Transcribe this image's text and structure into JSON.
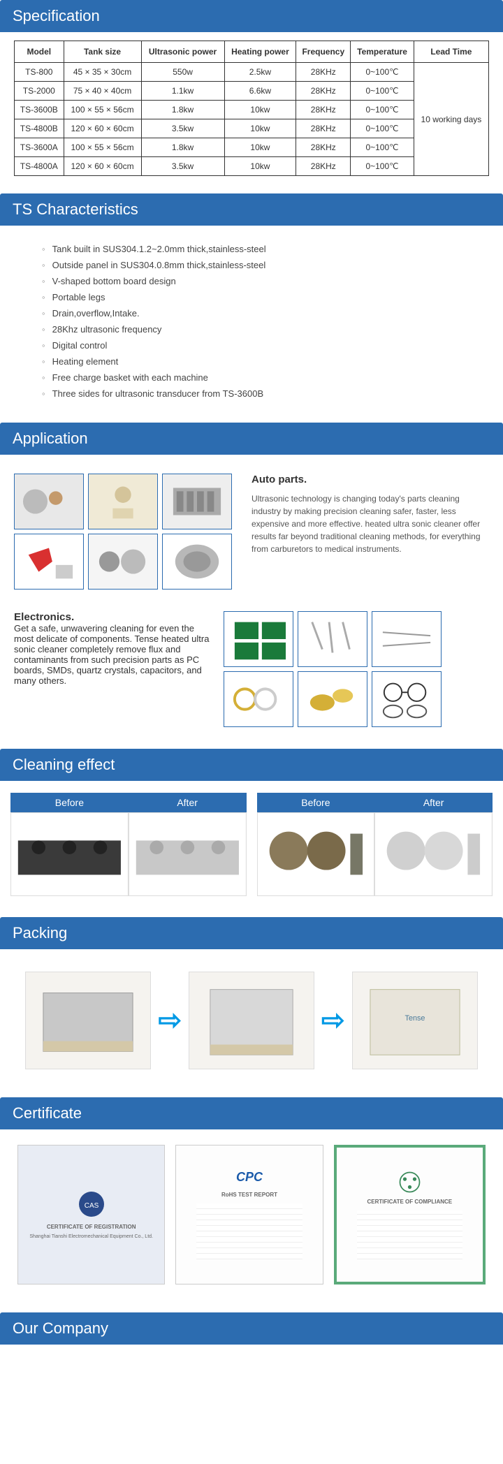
{
  "colors": {
    "header_bg": "#2c6cb0",
    "header_text": "#ffffff",
    "border": "#333333",
    "arrow": "#0099e5"
  },
  "sections": {
    "specification": "Specification",
    "characteristics": "TS Characteristics",
    "application": "Application",
    "cleaning": "Cleaning effect",
    "packing": "Packing",
    "certificate": "Certificate",
    "company": "Our Company"
  },
  "spec_table": {
    "headers": [
      "Model",
      "Tank size",
      "Ultrasonic power",
      "Heating power",
      "Frequency",
      "Temperature",
      "Lead Time"
    ],
    "rows": [
      [
        "TS-800",
        "45 × 35 × 30cm",
        "550w",
        "2.5kw",
        "28KHz",
        "0~100℃"
      ],
      [
        "TS-2000",
        "75 × 40 × 40cm",
        "1.1kw",
        "6.6kw",
        "28KHz",
        "0~100℃"
      ],
      [
        "TS-3600B",
        "100 × 55 × 56cm",
        "1.8kw",
        "10kw",
        "28KHz",
        "0~100℃"
      ],
      [
        "TS-4800B",
        "120 × 60 × 60cm",
        "3.5kw",
        "10kw",
        "28KHz",
        "0~100℃"
      ],
      [
        "TS-3600A",
        "100 × 55 × 56cm",
        "1.8kw",
        "10kw",
        "28KHz",
        "0~100℃"
      ],
      [
        "TS-4800A",
        "120 × 60 × 60cm",
        "3.5kw",
        "10kw",
        "28KHz",
        "0~100℃"
      ]
    ],
    "lead_time": "10 working days"
  },
  "characteristics": [
    "Tank built in SUS304.1.2~2.0mm thick,stainless-steel",
    "Outside panel in SUS304.0.8mm thick,stainless-steel",
    "V-shaped bottom board design",
    "Portable legs",
    "Drain,overflow,Intake.",
    "28Khz ultrasonic frequency",
    "Digital control",
    "Heating element",
    "Free charge basket with each machine",
    "Three sides for ultrasonic transducer from TS-3600B"
  ],
  "application": {
    "auto": {
      "title": "Auto parts.",
      "body": "Ultrasonic technology is changing today's parts cleaning industry by making precision cleaning safer, faster, less expensive and more effective. heated ultra sonic cleaner offer results far beyond traditional cleaning methods, for everything from carburetors to medical instruments."
    },
    "electronics": {
      "title": "Electronics.",
      "body": "Get a safe, unwavering cleaning for even the most delicate of components. Tense heated ultra sonic cleaner completely remove flux and contaminants from such precision parts as PC boards, SMDs, quartz crystals, capacitors, and many others."
    }
  },
  "cleaning": {
    "before": "Before",
    "after": "After"
  },
  "certificates": {
    "c1_title": "CERTIFICATE OF REGISTRATION",
    "c1_sub": "Shanghai Tianshi Electromechanical Equipment Co., Ltd.",
    "c2_title": "CPC",
    "c2_sub": "RoHS TEST REPORT",
    "c3_title": "CERTIFICATE OF COMPLIANCE"
  }
}
